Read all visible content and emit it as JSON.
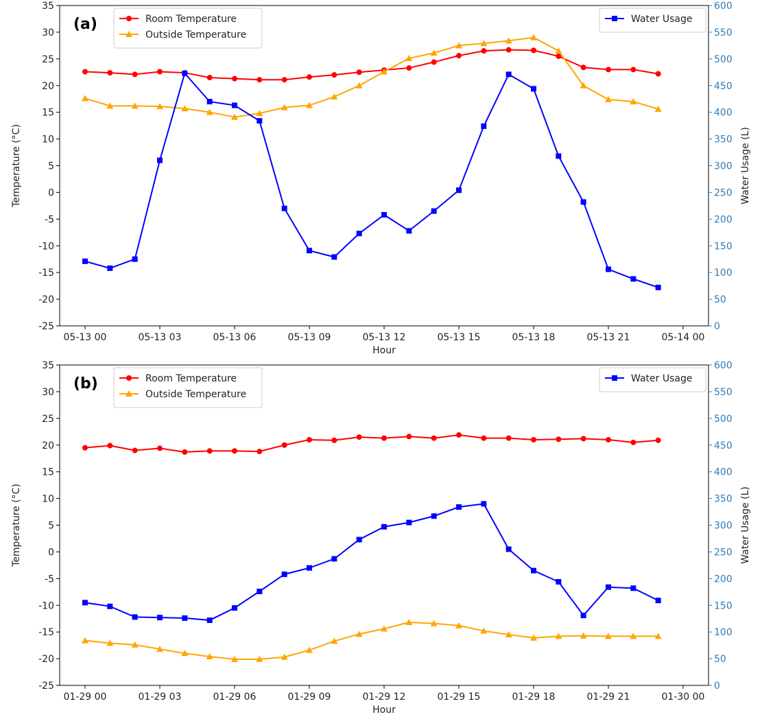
{
  "chart_data": [
    {
      "type": "line",
      "panel_label": "(a)",
      "x": [
        "05-13 00",
        "05-13 01",
        "05-13 02",
        "05-13 03",
        "05-13 04",
        "05-13 05",
        "05-13 06",
        "05-13 07",
        "05-13 08",
        "05-13 09",
        "05-13 10",
        "05-13 11",
        "05-13 12",
        "05-13 13",
        "05-13 14",
        "05-13 15",
        "05-13 16",
        "05-13 17",
        "05-13 18",
        "05-13 19",
        "05-13 20",
        "05-13 21",
        "05-13 22",
        "05-13 23"
      ],
      "x_tick_labels": [
        "05-13 00",
        "05-13 03",
        "05-13 06",
        "05-13 09",
        "05-13 12",
        "05-13 15",
        "05-13 18",
        "05-13 21",
        "05-14 00"
      ],
      "xlabel": "Hour",
      "ylabel": "Temperature (°C)",
      "ylim": [
        -25,
        35
      ],
      "y_ticks": [
        -25,
        -20,
        -15,
        -10,
        -5,
        0,
        5,
        10,
        15,
        20,
        25,
        30,
        35
      ],
      "y2label": "Water Usage (L)",
      "y2lim": [
        0,
        600
      ],
      "y2_ticks": [
        0,
        50,
        100,
        150,
        200,
        250,
        300,
        350,
        400,
        450,
        500,
        550,
        600
      ],
      "grid": false,
      "legend_left": "upper-left",
      "legend_right": "upper-right",
      "series": [
        {
          "name": "Room Temperature",
          "axis": "left",
          "color": "#ff0000",
          "marker": "circle",
          "values": [
            22.6,
            22.4,
            22.1,
            22.6,
            22.4,
            21.5,
            21.3,
            21.1,
            21.1,
            21.6,
            22.0,
            22.5,
            22.9,
            23.3,
            24.4,
            25.6,
            26.5,
            26.7,
            26.6,
            25.5,
            23.4,
            23.0,
            23.0,
            22.2
          ]
        },
        {
          "name": "Outside Temperature",
          "axis": "left",
          "color": "#ffa500",
          "marker": "triangle",
          "values": [
            17.6,
            16.2,
            16.2,
            16.1,
            15.7,
            15.0,
            14.1,
            14.8,
            15.9,
            16.3,
            17.9,
            20.0,
            22.6,
            25.1,
            26.1,
            27.5,
            27.9,
            28.4,
            29.0,
            26.5,
            20.0,
            17.4,
            17.0,
            15.6
          ]
        },
        {
          "name": "Water Usage",
          "axis": "right",
          "color": "#0000ff",
          "marker": "square",
          "values": [
            121,
            108,
            125,
            310,
            473,
            420,
            413,
            384,
            220,
            141,
            129,
            173,
            208,
            178,
            215,
            254,
            374,
            471,
            444,
            318,
            232,
            106,
            88,
            72
          ]
        }
      ]
    },
    {
      "type": "line",
      "panel_label": "(b)",
      "x": [
        "01-29 00",
        "01-29 01",
        "01-29 02",
        "01-29 03",
        "01-29 04",
        "01-29 05",
        "01-29 06",
        "01-29 07",
        "01-29 08",
        "01-29 09",
        "01-29 10",
        "01-29 11",
        "01-29 12",
        "01-29 13",
        "01-29 14",
        "01-29 15",
        "01-29 16",
        "01-29 17",
        "01-29 18",
        "01-29 19",
        "01-29 20",
        "01-29 21",
        "01-29 22",
        "01-29 23"
      ],
      "x_tick_labels": [
        "01-29 00",
        "01-29 03",
        "01-29 06",
        "01-29 09",
        "01-29 12",
        "01-29 15",
        "01-29 18",
        "01-29 21",
        "01-30 00"
      ],
      "xlabel": "Hour",
      "ylabel": "Temperature (°C)",
      "ylim": [
        -25,
        35
      ],
      "y_ticks": [
        -25,
        -20,
        -15,
        -10,
        -5,
        0,
        5,
        10,
        15,
        20,
        25,
        30,
        35
      ],
      "y2label": "Water Usage (L)",
      "y2lim": [
        0,
        600
      ],
      "y2_ticks": [
        0,
        50,
        100,
        150,
        200,
        250,
        300,
        350,
        400,
        450,
        500,
        550,
        600
      ],
      "grid": false,
      "legend_left": "upper-left",
      "legend_right": "upper-right",
      "series": [
        {
          "name": "Room Temperature",
          "axis": "left",
          "color": "#ff0000",
          "marker": "circle",
          "values": [
            19.5,
            19.9,
            19.0,
            19.4,
            18.7,
            18.9,
            18.9,
            18.8,
            20.0,
            21.0,
            20.9,
            21.5,
            21.3,
            21.6,
            21.3,
            21.9,
            21.3,
            21.3,
            21.0,
            21.1,
            21.2,
            21.0,
            20.5,
            20.9
          ]
        },
        {
          "name": "Outside Temperature",
          "axis": "left",
          "color": "#ffa500",
          "marker": "triangle",
          "values": [
            -16.6,
            -17.1,
            -17.4,
            -18.2,
            -19.0,
            -19.6,
            -20.1,
            -20.1,
            -19.7,
            -18.4,
            -16.7,
            -15.4,
            -14.4,
            -13.2,
            -13.4,
            -13.8,
            -14.8,
            -15.5,
            -16.1,
            -15.8,
            -15.7,
            -15.8,
            -15.8,
            -15.8
          ]
        },
        {
          "name": "Water Usage",
          "axis": "right",
          "color": "#0000ff",
          "marker": "square",
          "values": [
            155,
            148,
            128,
            127,
            126,
            122,
            145,
            176,
            208,
            220,
            237,
            273,
            297,
            305,
            317,
            334,
            340,
            255,
            215,
            194,
            131,
            184,
            182,
            159
          ]
        }
      ]
    }
  ]
}
